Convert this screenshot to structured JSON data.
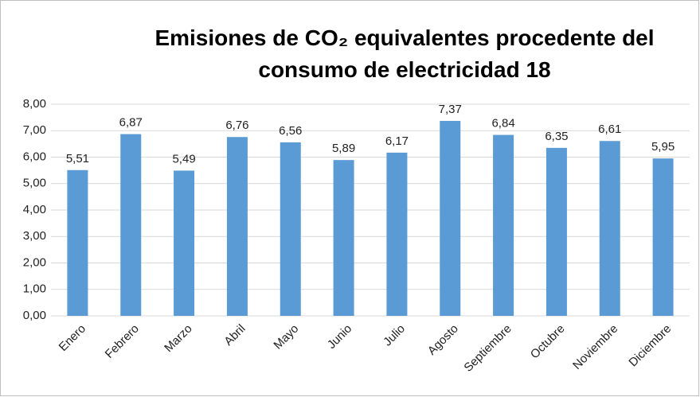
{
  "chart_data": {
    "type": "bar",
    "title": "Emisiones de CO₂ equivalentes procedente del consumo de electricidad 18",
    "categories": [
      "Enero",
      "Febrero",
      "Marzo",
      "Abril",
      "Mayo",
      "Junio",
      "Julio",
      "Agosto",
      "Septiembre",
      "Octubre",
      "Noviembre",
      "Diciembre"
    ],
    "values": [
      5.51,
      6.87,
      5.49,
      6.76,
      6.56,
      5.89,
      6.17,
      7.37,
      6.84,
      6.35,
      6.61,
      5.95
    ],
    "value_labels": [
      "5,51",
      "6,87",
      "5,49",
      "6,76",
      "6,56",
      "5,89",
      "6,17",
      "7,37",
      "6,84",
      "6,35",
      "6,61",
      "5,95"
    ],
    "color": "#5b9bd5",
    "ylim": [
      0,
      8
    ],
    "yticks": [
      {
        "value": 0,
        "label": "0,00"
      },
      {
        "value": 1,
        "label": "1,00"
      },
      {
        "value": 2,
        "label": "2,00"
      },
      {
        "value": 3,
        "label": "3,00"
      },
      {
        "value": 4,
        "label": "4,00"
      },
      {
        "value": 5,
        "label": "5,00"
      },
      {
        "value": 6,
        "label": "6,00"
      },
      {
        "value": 7,
        "label": "7,00"
      },
      {
        "value": 8,
        "label": "8,00"
      }
    ],
    "grid": true
  }
}
